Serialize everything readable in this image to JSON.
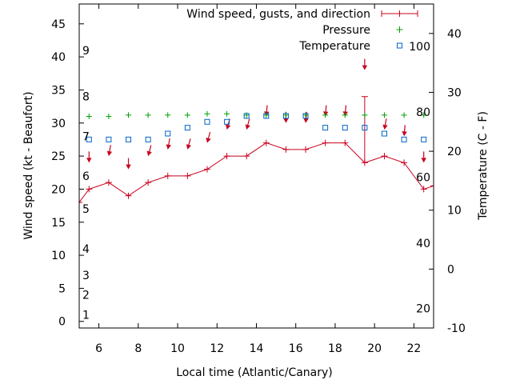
{
  "chart_data": {
    "type": "line",
    "title": "",
    "xlabel": "Local time (Atlantic/Canary)",
    "ylabel_left": "Wind speed (kt - Beaufort)",
    "ylabel_right": "Temperature (C - F)",
    "xlim": [
      5,
      23
    ],
    "ylim_left": [
      -1,
      48
    ],
    "ylim_right": [
      -10,
      45
    ],
    "x_ticks": [
      6,
      8,
      10,
      12,
      14,
      16,
      18,
      20,
      22
    ],
    "y_ticks_left": [
      0,
      5,
      10,
      15,
      20,
      25,
      30,
      35,
      40,
      45
    ],
    "y_ticks_right": [
      -10,
      0,
      10,
      20,
      30,
      40
    ],
    "beaufort_labels": [
      {
        "kt": 1,
        "label": "1"
      },
      {
        "kt": 4,
        "label": "2"
      },
      {
        "kt": 7,
        "label": "3"
      },
      {
        "kt": 11,
        "label": "4"
      },
      {
        "kt": 17,
        "label": "5"
      },
      {
        "kt": 22,
        "label": "6"
      },
      {
        "kt": 28,
        "label": "7"
      },
      {
        "kt": 34,
        "label": "8"
      },
      {
        "kt": 41,
        "label": "9"
      }
    ],
    "fahrenheit_labels": [
      {
        "c": -6.7,
        "label": "20"
      },
      {
        "c": 4.4,
        "label": "40"
      },
      {
        "c": 15.6,
        "label": "60"
      },
      {
        "c": 26.7,
        "label": "80"
      },
      {
        "c": 37.8,
        "label": "100"
      }
    ],
    "legend": [
      {
        "label": "Wind speed, gusts, and direction",
        "color": "#c8001e"
      },
      {
        "label": "Pressure",
        "color": "#00a000"
      },
      {
        "label": "Temperature",
        "color": "#0064c8"
      }
    ],
    "series": [
      {
        "name": "Wind speed",
        "x": [
          5,
          5.5,
          6.5,
          7.5,
          8.5,
          9.5,
          10.5,
          11.5,
          12.5,
          13.5,
          14.5,
          15.5,
          16.5,
          17.5,
          18.5,
          19.5,
          20.5,
          21.5,
          22.5,
          23
        ],
        "values": [
          18,
          20,
          21,
          19,
          21,
          22,
          22,
          23,
          25,
          25,
          27,
          26,
          26,
          27,
          27,
          24,
          25,
          24,
          20,
          20.5
        ]
      },
      {
        "name": "Gust",
        "x": [
          19.5
        ],
        "values": [
          34
        ]
      },
      {
        "name": "Wind direction arrows",
        "x": [
          5.5,
          6.5,
          7.5,
          8.5,
          9.5,
          10.5,
          11.5,
          12.5,
          13.5,
          14.5,
          15.5,
          16.5,
          17.5,
          18.5,
          19.5,
          20.5,
          21.5,
          22.5
        ],
        "values": [
          24,
          25,
          23,
          25,
          26,
          26,
          27,
          29,
          29,
          31,
          30,
          30,
          31,
          31,
          38,
          29,
          28,
          24
        ],
        "direction_deg": [
          0,
          10,
          0,
          15,
          10,
          15,
          15,
          15,
          15,
          5,
          0,
          5,
          5,
          5,
          0,
          10,
          5,
          0
        ]
      },
      {
        "name": "Pressure",
        "x": [
          5.5,
          6.5,
          7.5,
          8.5,
          9.5,
          10.5,
          11.5,
          12.5,
          13.5,
          14.5,
          15.5,
          16.5,
          17.5,
          18.5,
          19.5,
          20.5,
          21.5,
          22.5
        ],
        "values": [
          31,
          31,
          31.2,
          31.2,
          31.2,
          31.2,
          31.4,
          31.4,
          31.2,
          31.2,
          31.2,
          31.2,
          31.2,
          31.2,
          31.2,
          31.2,
          31.2,
          31.2
        ]
      },
      {
        "name": "Temperature",
        "x": [
          5.5,
          6.5,
          7.5,
          8.5,
          9.5,
          10.5,
          11.5,
          12.5,
          13.5,
          14.5,
          15.5,
          16.5,
          17.5,
          18.5,
          19.5,
          20.5,
          21.5,
          22.5
        ],
        "values": [
          22,
          22,
          22,
          22,
          23,
          24,
          25,
          25,
          26,
          26,
          26,
          26,
          24,
          24,
          24,
          23,
          22,
          22
        ]
      }
    ]
  }
}
